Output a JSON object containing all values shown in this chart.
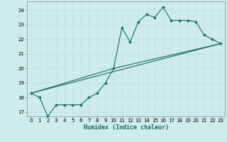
{
  "xlabel": "Humidex (Indice chaleur)",
  "background_color": "#ceecea",
  "grid_color": "#c0dedd",
  "line_color": "#1a6b62",
  "xlim": [
    -0.5,
    23.5
  ],
  "ylim": [
    16.7,
    24.6
  ],
  "yticks": [
    17,
    18,
    19,
    20,
    21,
    22,
    23,
    24
  ],
  "xticks": [
    0,
    1,
    2,
    3,
    4,
    5,
    6,
    7,
    8,
    9,
    10,
    11,
    12,
    13,
    14,
    15,
    16,
    17,
    18,
    19,
    20,
    21,
    22,
    23
  ],
  "line1_x": [
    0,
    1,
    2,
    3,
    4,
    5,
    6,
    7,
    8,
    9,
    10,
    11,
    12,
    13,
    14,
    15,
    16,
    17,
    18,
    19,
    20,
    21,
    22,
    23
  ],
  "line1_y": [
    18.3,
    18.0,
    16.7,
    17.5,
    17.5,
    17.5,
    17.5,
    18.0,
    18.3,
    19.0,
    20.0,
    22.8,
    21.8,
    23.2,
    23.7,
    23.5,
    24.2,
    23.3,
    23.3,
    23.3,
    23.2,
    22.3,
    22.0,
    21.7
  ],
  "line2_x": [
    0,
    23
  ],
  "line2_y": [
    18.3,
    21.7
  ],
  "line3_x": [
    0,
    10,
    23
  ],
  "line3_y": [
    18.3,
    20.0,
    21.7
  ]
}
